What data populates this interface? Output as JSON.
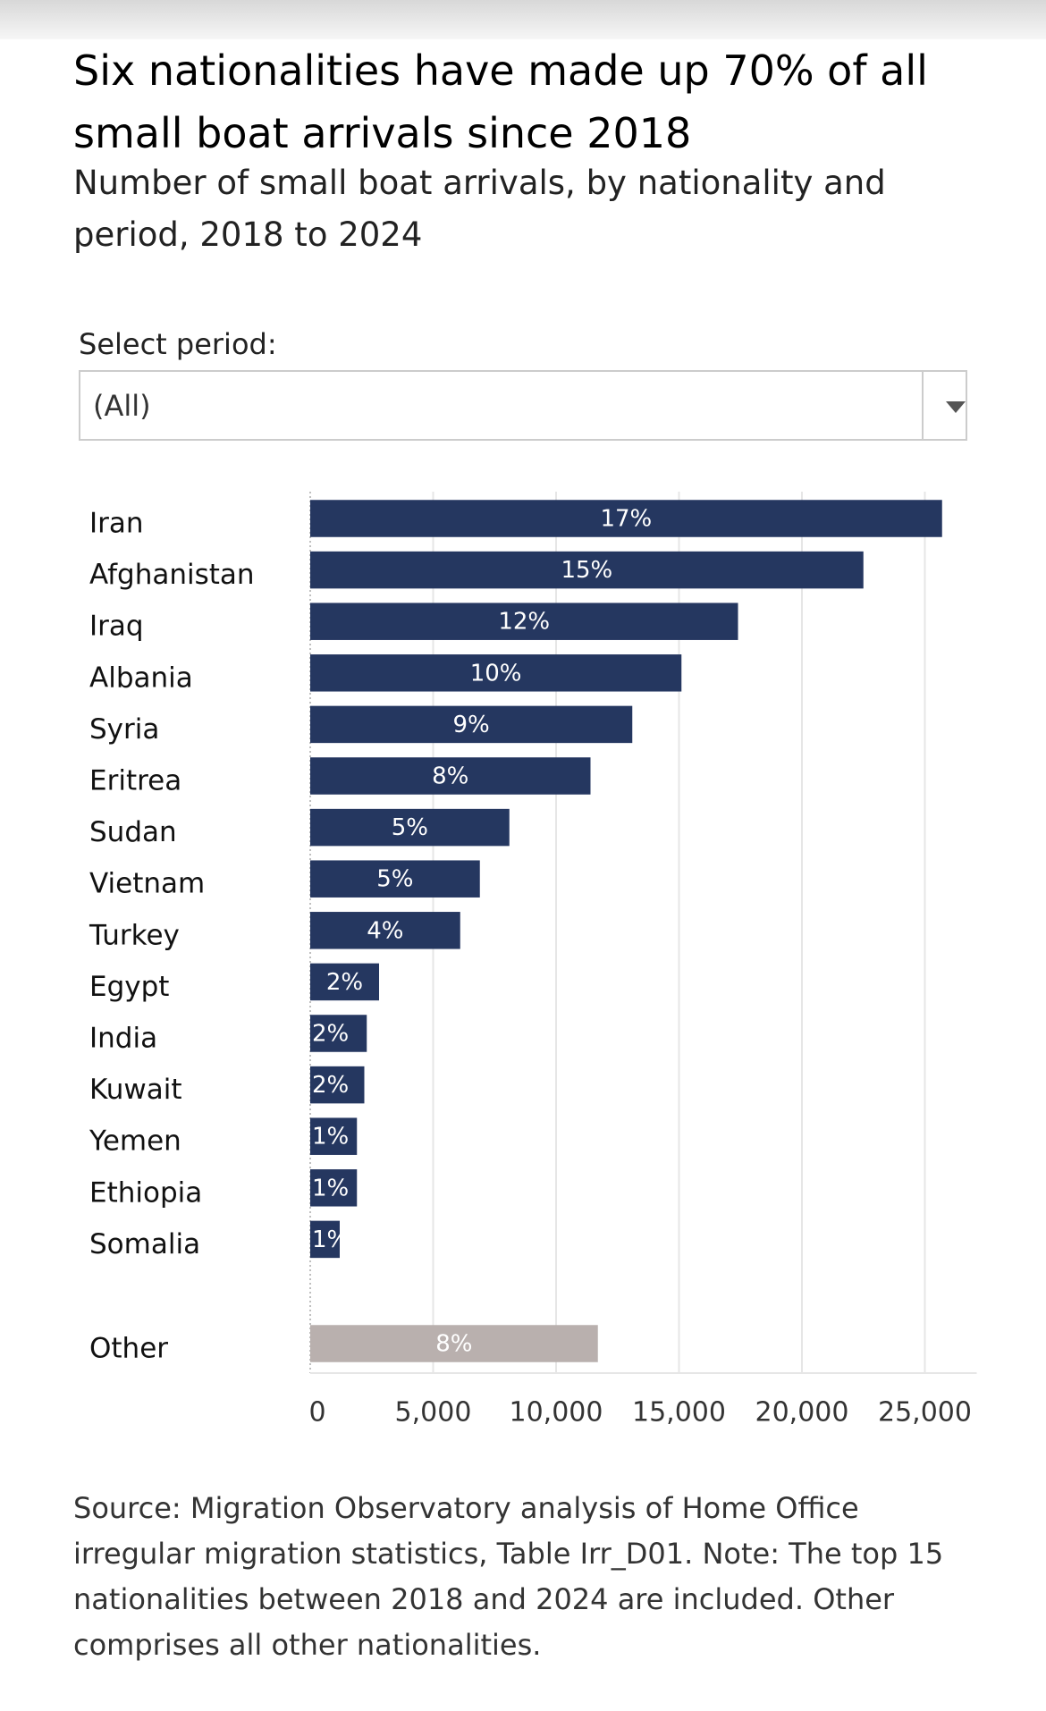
{
  "chart_data": {
    "type": "bar",
    "title": "Six nationalities have made up 70% of all small boat arrivals since 2018",
    "subtitle": "Number of small boat arrivals, by nationality and period, 2018 to 2024",
    "filter_label": "Select period:",
    "filter_value": "(All)",
    "categories": [
      "Iran",
      "Afghanistan",
      "Iraq",
      "Albania",
      "Syria",
      "Eritrea",
      "Sudan",
      "Vietnam",
      "Turkey",
      "Egypt",
      "India",
      "Kuwait",
      "Yemen",
      "Ethiopia",
      "Somalia",
      "Other"
    ],
    "values": [
      25700,
      22500,
      17400,
      15100,
      13100,
      11400,
      8100,
      6900,
      6100,
      2800,
      2300,
      2200,
      1900,
      1900,
      1200,
      11700
    ],
    "share_labels": [
      "17%",
      "15%",
      "12%",
      "10%",
      "9%",
      "8%",
      "5%",
      "5%",
      "4%",
      "2%",
      "2%",
      "2%",
      "1%",
      "1%",
      "1%",
      "8%"
    ],
    "colors": [
      "#253760",
      "#253760",
      "#253760",
      "#253760",
      "#253760",
      "#253760",
      "#253760",
      "#253760",
      "#253760",
      "#253760",
      "#253760",
      "#253760",
      "#253760",
      "#253760",
      "#253760",
      "#b9b0ae"
    ],
    "xlim": [
      0,
      27000
    ],
    "xticks": [
      0,
      {
        "value": 5000,
        "label": "5,000"
      },
      {
        "value": 10000,
        "label": "10,000"
      },
      {
        "value": 15000,
        "label": "15,000"
      },
      {
        "value": 20000,
        "label": "20,000"
      },
      {
        "value": 25000,
        "label": "25,000"
      }
    ],
    "grid": true,
    "source": "Source: Migration Observatory analysis of Home Office irregular migration statistics, Table Irr_D01. Note: The top 15 nationalities between 2018 and 2024 are included. Other comprises all other nationalities."
  }
}
